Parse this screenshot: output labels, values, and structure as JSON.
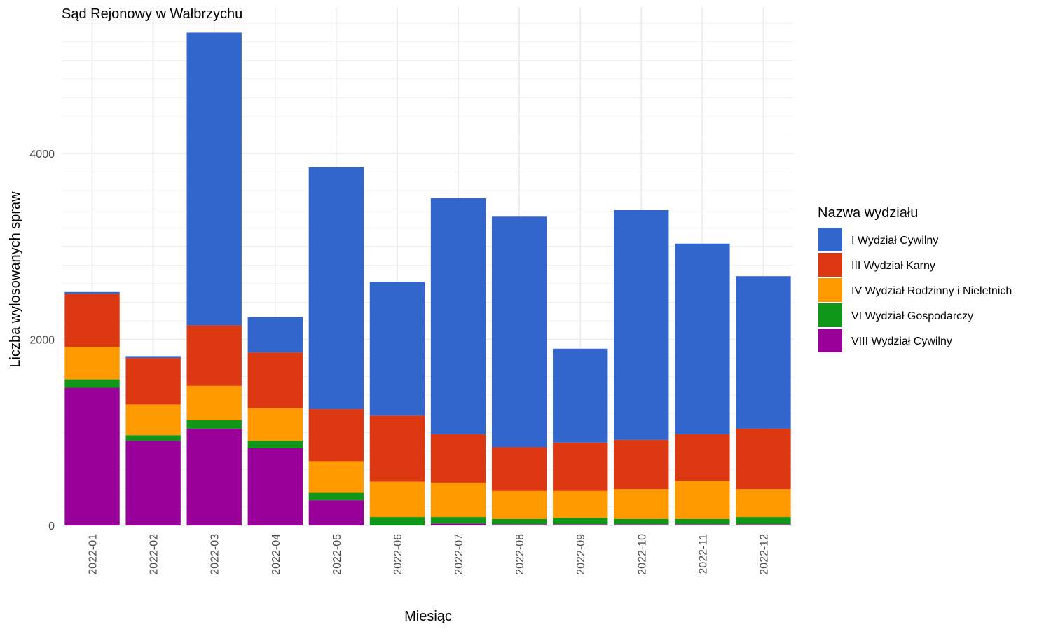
{
  "chart_data": {
    "type": "bar",
    "stacked": true,
    "title": "Sąd Rejonowy w Wałbrzychu",
    "xlabel": "Miesiąc",
    "ylabel": "Liczba wylosowanych spraw",
    "ylim": [
      0,
      5500
    ],
    "yticks": [
      0,
      2000,
      4000
    ],
    "grid": true,
    "legend_title": "Nazwa wydziału",
    "legend_position": "right",
    "categories": [
      "2022-01",
      "2022-02",
      "2022-03",
      "2022-04",
      "2022-05",
      "2022-06",
      "2022-07",
      "2022-08",
      "2022-09",
      "2022-10",
      "2022-11",
      "2022-12"
    ],
    "series": [
      {
        "name": "VIII Wydział Cywilny",
        "color": "#990099",
        "values": [
          1480,
          910,
          1040,
          830,
          270,
          0,
          20,
          10,
          10,
          10,
          10,
          10
        ]
      },
      {
        "name": "VI Wydział Gospodarczy",
        "color": "#109618",
        "values": [
          90,
          60,
          90,
          80,
          80,
          90,
          70,
          60,
          70,
          60,
          60,
          80
        ]
      },
      {
        "name": "IV Wydział Rodzinny i Nieletnich",
        "color": "#FF9900",
        "values": [
          350,
          330,
          370,
          350,
          340,
          380,
          370,
          300,
          290,
          320,
          410,
          300
        ]
      },
      {
        "name": "III Wydział Karny",
        "color": "#DC3912",
        "values": [
          570,
          500,
          650,
          600,
          560,
          710,
          520,
          470,
          520,
          530,
          500,
          650
        ]
      },
      {
        "name": "I Wydział Cywilny",
        "color": "#3366CC",
        "values": [
          20,
          20,
          3150,
          380,
          2600,
          1440,
          2540,
          2480,
          1010,
          2470,
          2050,
          1640
        ]
      }
    ],
    "legend_order": [
      "I Wydział Cywilny",
      "III Wydział Karny",
      "IV Wydział Rodzinny i Nieletnich",
      "VI Wydział Gospodarczy",
      "VIII Wydział Cywilny"
    ]
  }
}
